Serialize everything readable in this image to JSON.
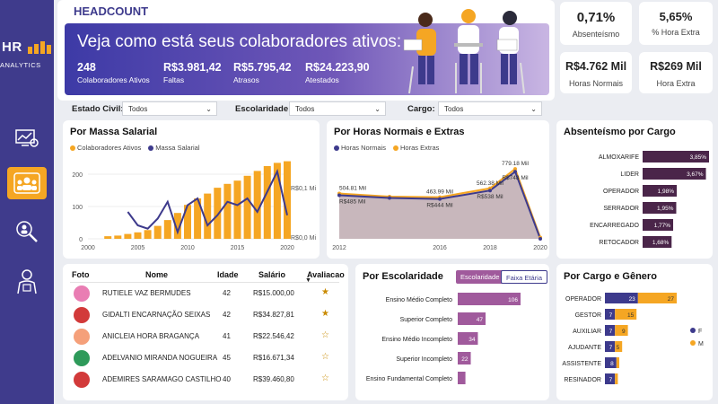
{
  "header": {
    "title": "HEADCOUNT"
  },
  "logo": {
    "main": "HR",
    "sub": "ANALYTICS"
  },
  "banner": {
    "headline": "Veja como está seus colaboradores ativos:",
    "stats": [
      {
        "value": "248",
        "label": "Colaboradores Ativos"
      },
      {
        "value": "R$3.981,42",
        "label": "Faltas"
      },
      {
        "value": "R$5.795,42",
        "label": "Atrasos"
      },
      {
        "value": "R$24.223,90",
        "label": "Atestados"
      }
    ]
  },
  "kpis": [
    {
      "value": "0,71%",
      "label": "Absenteísmo"
    },
    {
      "value": "5,65%",
      "label": "% Hora Extra"
    },
    {
      "value": "R$4.762 Mil",
      "label": "Horas Normais"
    },
    {
      "value": "R$269 Mil",
      "label": "Hora Extra"
    }
  ],
  "filters": [
    {
      "label": "Estado Civil:",
      "value": "Todos"
    },
    {
      "label": "Escolaridade:",
      "value": "Todos"
    },
    {
      "label": "Cargo:",
      "value": "Todos"
    }
  ],
  "colors": {
    "sidebar": "#3f3b8c",
    "orange": "#f5a623",
    "purple": "#3d3a8c",
    "wine": "#4a2549",
    "pink": "#a05a9c"
  },
  "chart_massa": {
    "title": "Por Massa Salarial",
    "legend": [
      "Colaboradores Ativos",
      "Massa Salarial"
    ],
    "y_ticks": [
      "0",
      "100",
      "200"
    ],
    "x_ticks": [
      "2000",
      "2005",
      "2010",
      "2015",
      "2020"
    ],
    "right_ticks": [
      "R$0,1 Mi",
      "R$0,0 Mi"
    ]
  },
  "chart_data": [
    {
      "type": "bar",
      "title": "Por Massa Salarial",
      "series": [
        {
          "name": "Colaboradores Ativos",
          "x": [
            2002,
            2003,
            2004,
            2005,
            2006,
            2007,
            2008,
            2009,
            2010,
            2011,
            2012,
            2013,
            2014,
            2015,
            2016,
            2017,
            2018,
            2019,
            2020
          ],
          "values": [
            8,
            10,
            15,
            20,
            27,
            40,
            58,
            80,
            105,
            125,
            140,
            158,
            170,
            180,
            195,
            210,
            225,
            235,
            240
          ]
        },
        {
          "name": "Massa Salarial",
          "type": "line",
          "x": [
            2004,
            2005,
            2006,
            2007,
            2008,
            2009,
            2010,
            2011,
            2012,
            2013,
            2014,
            2015,
            2016,
            2017,
            2018,
            2019,
            2020
          ],
          "values": [
            0.04,
            0.02,
            0.015,
            0.03,
            0.055,
            0.01,
            0.05,
            0.06,
            0.02,
            0.035,
            0.055,
            0.05,
            0.06,
            0.04,
            0.07,
            0.1,
            0.035
          ]
        }
      ],
      "ylim": [
        0,
        250
      ]
    },
    {
      "type": "area",
      "title": "Por Horas Normais e Extras",
      "x": [
        2012,
        2014,
        2016,
        2018,
        2019,
        2020
      ],
      "series": [
        {
          "name": "Horas Normais",
          "values": [
            485,
            455,
            444,
            538,
            748,
            0
          ]
        },
        {
          "name": "Horas Extras",
          "values": [
            504.81,
            470,
            463.99,
            562.38,
            779.18,
            15
          ]
        }
      ],
      "labels_normais": [
        "R$485 Mil",
        "R$444 Mil",
        "R$538 Mil",
        "R$748 Mil"
      ],
      "labels_extras": [
        "504.81 Mil",
        "463.99 Mil",
        "562.38 Mil",
        "779.18 Mil"
      ]
    },
    {
      "type": "bar",
      "title": "Absenteísmo por Cargo",
      "categories": [
        "ALMOXARIFE",
        "LIDER",
        "OPERADOR",
        "SERRADOR",
        "ENCARREGADO",
        "RETOCADOR"
      ],
      "values": [
        3.85,
        3.67,
        1.98,
        1.95,
        1.77,
        1.68
      ],
      "labels": [
        "3,85%",
        "3,67%",
        "1,98%",
        "1,95%",
        "1,77%",
        "1,68%"
      ]
    },
    {
      "type": "bar",
      "title": "Por Escolaridade",
      "categories": [
        "Ensino Médio Completo",
        "Superior Completo",
        "Ensino Médio Incompleto",
        "Superior Incompleto",
        "Ensino Fundamental Completo"
      ],
      "values": [
        106,
        47,
        34,
        22,
        13
      ],
      "labels": [
        "106",
        "47",
        "34",
        "22",
        ""
      ]
    },
    {
      "type": "bar",
      "title": "Por Cargo e Gênero",
      "categories": [
        "OPERADOR",
        "GESTOR",
        "AUXILIAR",
        "AJUDANTE",
        "ASSISTENTE",
        "RESINADOR"
      ],
      "series": [
        {
          "name": "F",
          "values": [
            23,
            7,
            7,
            7,
            8,
            7
          ]
        },
        {
          "name": "M",
          "values": [
            27,
            15,
            9,
            5,
            2,
            2
          ]
        }
      ],
      "labels_f": [
        "23",
        "7",
        "7",
        "7",
        "8",
        "7"
      ],
      "labels_m": [
        "27",
        "15",
        "9",
        "5",
        "",
        ""
      ]
    }
  ],
  "chart_horas": {
    "title": "Por Horas Normais e Extras",
    "legend": [
      "Horas Normais",
      "Horas Extras"
    ],
    "x_ticks": [
      "2012",
      "2016",
      "2018",
      "2020"
    ]
  },
  "chart_absent": {
    "title": "Absenteísmo por Cargo"
  },
  "chart_escol": {
    "title": "Por Escolaridade",
    "chips": [
      "Escolaridade",
      "Faixa Etária"
    ]
  },
  "chart_genero": {
    "title": "Por Cargo e Gênero",
    "legend": [
      "F",
      "M"
    ]
  },
  "table": {
    "headers": [
      "Foto",
      "Nome",
      "Idade",
      "Salário",
      "Avaliacao"
    ],
    "rows": [
      {
        "name": "RUTIELE VAZ BERMUDES",
        "age": "42",
        "salary": "R$15.000,00"
      },
      {
        "name": "GIDALTI ENCARNAÇÃO SEIXAS",
        "age": "42",
        "salary": "R$34.827,81"
      },
      {
        "name": "ANICLEIA HORA BRAGANÇA",
        "age": "41",
        "salary": "R$22.546,42"
      },
      {
        "name": "ADELVANIO MIRANDA NOGUEIRA",
        "age": "45",
        "salary": "R$16.671,34"
      },
      {
        "name": "ADEMIRES SARAMAGO CASTILHO",
        "age": "40",
        "salary": "R$39.460,80"
      }
    ]
  }
}
